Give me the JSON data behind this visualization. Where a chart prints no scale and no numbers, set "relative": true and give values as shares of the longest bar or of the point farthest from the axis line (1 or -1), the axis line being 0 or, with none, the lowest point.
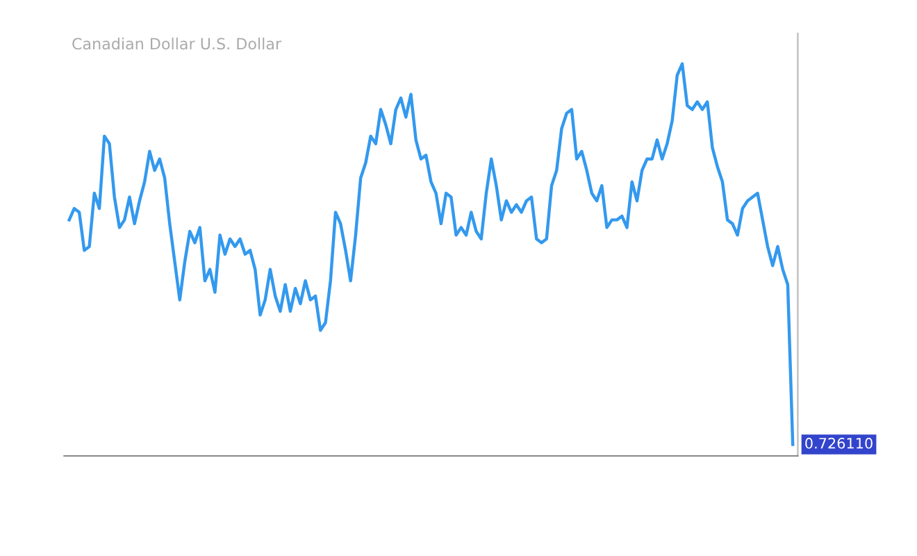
{
  "chart_data": {
    "type": "line",
    "title": "Canadian Dollar U.S. Dollar",
    "relative": true,
    "grid": false,
    "legend": false,
    "marker": "none",
    "line_style": "solid",
    "annotations": [
      "0.726110"
    ],
    "categories": [
      null,
      null,
      null,
      null,
      null,
      null,
      null,
      null,
      null,
      null,
      null,
      null,
      null,
      null,
      null,
      null,
      null,
      null,
      null,
      null,
      null,
      null,
      null,
      null,
      null,
      null,
      null,
      null,
      null,
      null,
      null,
      null,
      null,
      null,
      null,
      null,
      null,
      null,
      null,
      null,
      null,
      null,
      null,
      null,
      null,
      null,
      null,
      null,
      null,
      null,
      null,
      null,
      null,
      null,
      null,
      null,
      null,
      null,
      null,
      null,
      null,
      null,
      null,
      null,
      null,
      null,
      null,
      null,
      null,
      null,
      null,
      null,
      null,
      null,
      null,
      null,
      null,
      null,
      null,
      null,
      null,
      null,
      null,
      null,
      null,
      null,
      null,
      null,
      null,
      null,
      null,
      null,
      null,
      null,
      null,
      null,
      null,
      null,
      null,
      null,
      null,
      null,
      null,
      null,
      null,
      null,
      null,
      null,
      null,
      null,
      null,
      null,
      null,
      null,
      null,
      null,
      null,
      null,
      null,
      null,
      null,
      null,
      null,
      null,
      null,
      null,
      null,
      null,
      null,
      null,
      null,
      null,
      null,
      null,
      null,
      null,
      null,
      null,
      null,
      null,
      null,
      null,
      null,
      null,
      null
    ],
    "series": [
      {
        "color": "#3399ee",
        "values": [
          0.59,
          0.62,
          0.61,
          0.51,
          0.52,
          0.66,
          0.62,
          0.81,
          0.79,
          0.65,
          0.57,
          0.59,
          0.65,
          0.58,
          0.64,
          0.69,
          0.77,
          0.72,
          0.75,
          0.7,
          0.58,
          0.48,
          0.38,
          0.48,
          0.56,
          0.53,
          0.57,
          0.43,
          0.46,
          0.4,
          0.55,
          0.5,
          0.54,
          0.52,
          0.54,
          0.5,
          0.51,
          0.46,
          0.34,
          0.38,
          0.46,
          0.39,
          0.35,
          0.42,
          0.35,
          0.41,
          0.37,
          0.43,
          0.38,
          0.39,
          0.3,
          0.32,
          0.43,
          0.61,
          0.58,
          0.51,
          0.43,
          0.55,
          0.7,
          0.74,
          0.81,
          0.79,
          0.88,
          0.84,
          0.79,
          0.88,
          0.91,
          0.86,
          0.92,
          0.8,
          0.75,
          0.76,
          0.69,
          0.66,
          0.58,
          0.66,
          0.65,
          0.55,
          0.57,
          0.55,
          0.61,
          0.56,
          0.54,
          0.66,
          0.75,
          0.68,
          0.59,
          0.64,
          0.61,
          0.63,
          0.61,
          0.64,
          0.65,
          0.54,
          0.53,
          0.54,
          0.68,
          0.72,
          0.83,
          0.87,
          0.88,
          0.75,
          0.77,
          0.72,
          0.66,
          0.64,
          0.68,
          0.57,
          0.59,
          0.59,
          0.6,
          0.57,
          0.69,
          0.64,
          0.72,
          0.75,
          0.75,
          0.8,
          0.75,
          0.79,
          0.85,
          0.97,
          1,
          0.89,
          0.88,
          0.9,
          0.88,
          0.9,
          0.78,
          0.73,
          0.69,
          0.59,
          0.58,
          0.55,
          0.62,
          0.64,
          0.65,
          0.66,
          0.59,
          0.52,
          0.47,
          0.52,
          0.46,
          0.42,
          0
        ]
      }
    ]
  }
}
